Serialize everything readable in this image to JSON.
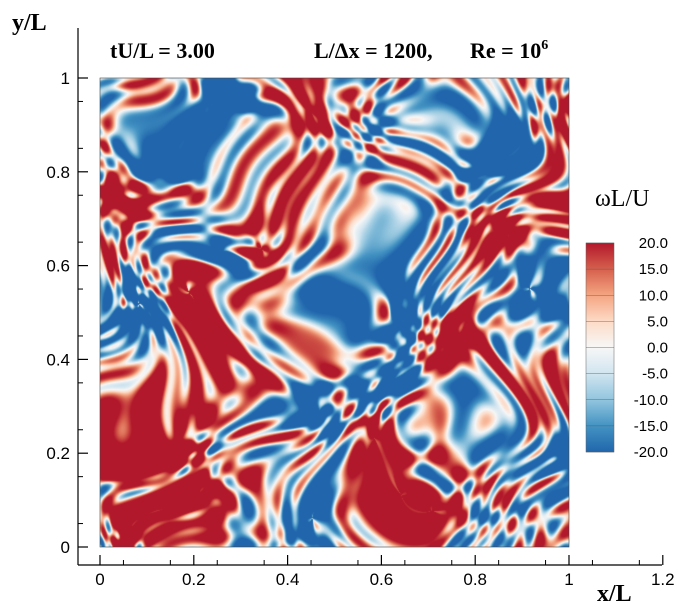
{
  "header": {
    "time_label": "tU/L = 3.00",
    "resolution_label": "L/Δx = 1200,",
    "reynolds_label": "Re = 10",
    "reynolds_exponent": "6"
  },
  "chart_data": {
    "type": "heatmap",
    "title": "",
    "xlabel": "x/L",
    "ylabel": "y/L",
    "xlim": [
      0,
      1.2
    ],
    "ylim": [
      0,
      1
    ],
    "field_extent": {
      "x": [
        0,
        1
      ],
      "y": [
        0,
        1
      ]
    },
    "xticks": [
      0,
      0.2,
      0.4,
      0.6,
      0.8,
      1,
      1.2
    ],
    "xtick_labels": [
      "0",
      "0.2",
      "0.4",
      "0.6",
      "0.8",
      "1",
      "1.2"
    ],
    "yticks": [
      0,
      0.2,
      0.4,
      0.6,
      0.8,
      1
    ],
    "ytick_labels": [
      "0",
      "0.2",
      "0.4",
      "0.6",
      "0.8",
      "1"
    ],
    "colorbar": {
      "title": "ωL/U",
      "range": [
        -20,
        20
      ],
      "levels": [
        20,
        15,
        10,
        5,
        0,
        -5,
        -10,
        -15,
        -20
      ],
      "level_labels": [
        "20.0",
        "15.0",
        "10.0",
        "5.0",
        "0.0",
        "-5.0",
        "-10.0",
        "-15.0",
        "-20.0"
      ],
      "colormap": [
        "#2166ac",
        "#4393c3",
        "#92c5de",
        "#d1e5f0",
        "#f7f7f7",
        "#fddbc7",
        "#f4a582",
        "#d6604d",
        "#b2182b"
      ]
    },
    "vortices": [
      {
        "x": 0.83,
        "y": 0.38,
        "sign": 1,
        "strength": 1.0
      },
      {
        "x": 0.27,
        "y": 0.47,
        "sign": 1,
        "strength": 0.9
      },
      {
        "x": 0.08,
        "y": 0.75,
        "sign": 1,
        "strength": 0.9
      },
      {
        "x": 0.1,
        "y": 0.27,
        "sign": 1,
        "strength": 1.0
      },
      {
        "x": 0.15,
        "y": 0.05,
        "sign": 1,
        "strength": 0.9
      },
      {
        "x": 0.88,
        "y": 0.6,
        "sign": 1,
        "strength": 0.8
      },
      {
        "x": 0.63,
        "y": 0.16,
        "sign": 1,
        "strength": 0.7
      },
      {
        "x": 0.97,
        "y": 0.8,
        "sign": 1,
        "strength": 0.8
      },
      {
        "x": 0.4,
        "y": 0.9,
        "sign": 1,
        "strength": 0.6
      },
      {
        "x": 0.36,
        "y": 0.7,
        "sign": 1,
        "strength": 0.6
      },
      {
        "x": 0.05,
        "y": 0.45,
        "sign": -1,
        "strength": 1.0
      },
      {
        "x": 0.2,
        "y": 0.9,
        "sign": -1,
        "strength": 1.0
      },
      {
        "x": 0.6,
        "y": 0.55,
        "sign": -1,
        "strength": 0.9
      },
      {
        "x": 0.78,
        "y": 0.88,
        "sign": -1,
        "strength": 0.9
      },
      {
        "x": 0.93,
        "y": 0.2,
        "sign": -1,
        "strength": 0.8
      },
      {
        "x": 0.4,
        "y": 0.3,
        "sign": -1,
        "strength": 0.7
      },
      {
        "x": 0.65,
        "y": 0.32,
        "sign": -1,
        "strength": 0.8
      },
      {
        "x": 0.28,
        "y": 0.62,
        "sign": -1,
        "strength": 0.7
      },
      {
        "x": 0.5,
        "y": 0.05,
        "sign": -1,
        "strength": 0.7
      },
      {
        "x": 0.95,
        "y": 0.5,
        "sign": -1,
        "strength": 0.7
      }
    ]
  }
}
